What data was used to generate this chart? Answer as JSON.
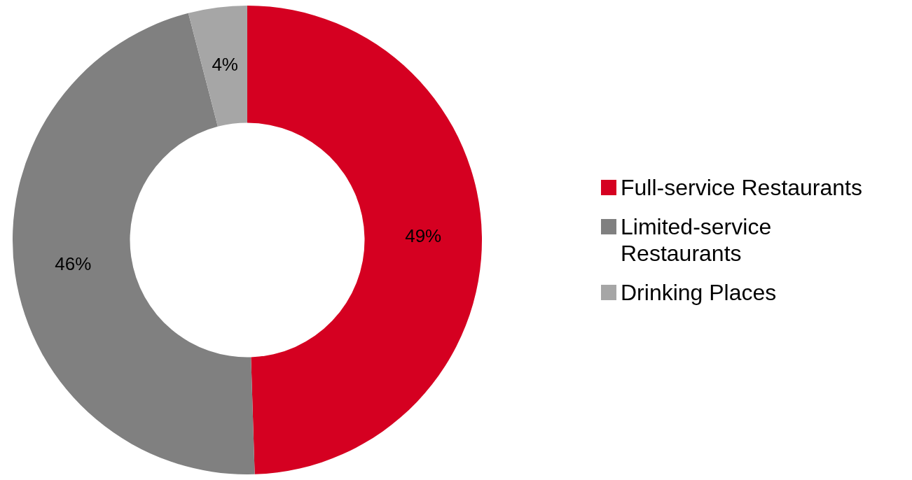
{
  "chart_data": {
    "type": "donut",
    "categories": [
      "Full-service Restaurants",
      "Limited-service Restaurants",
      "Drinking Places"
    ],
    "values": [
      49,
      46,
      4
    ],
    "colors": [
      "#d50021",
      "#808080",
      "#a6a6a6"
    ],
    "value_labels": [
      "49%",
      "46%",
      "4%"
    ],
    "legend": "right"
  }
}
